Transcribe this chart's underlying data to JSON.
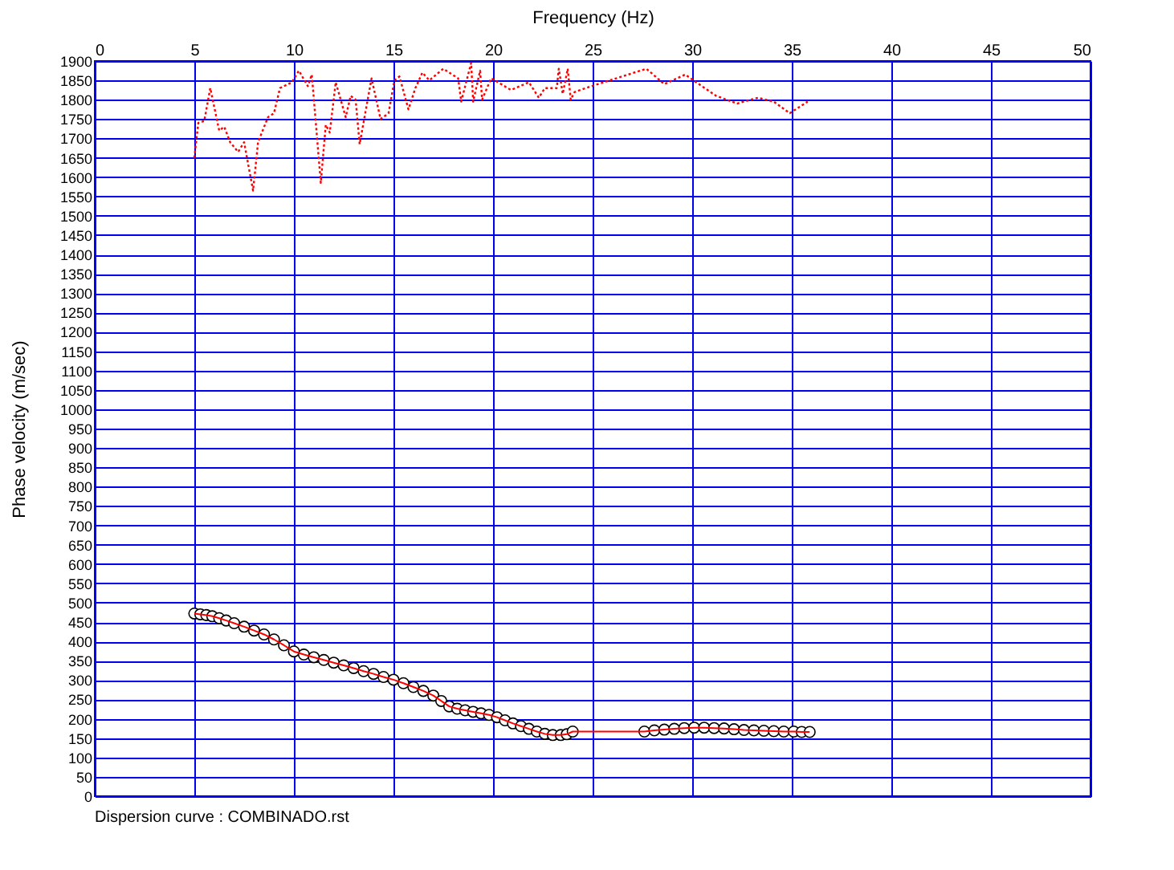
{
  "chart_data": {
    "type": "line",
    "xlabel": "Frequency (Hz)",
    "ylabel": "Phase velocity (m/sec)",
    "xlim": [
      0,
      50
    ],
    "xticks": [
      0,
      5,
      10,
      15,
      20,
      25,
      30,
      35,
      40,
      45,
      50
    ],
    "ylim": [
      0,
      1900
    ],
    "yticks": [
      0,
      50,
      100,
      150,
      200,
      250,
      300,
      350,
      400,
      450,
      500,
      550,
      600,
      650,
      700,
      750,
      800,
      850,
      900,
      950,
      1000,
      1050,
      1100,
      1150,
      1200,
      1250,
      1300,
      1350,
      1400,
      1450,
      1500,
      1550,
      1600,
      1650,
      1700,
      1750,
      1800,
      1850,
      1900
    ],
    "grid": true,
    "annotations": [
      "Dispersion curve : COMBINADO.rst"
    ],
    "series": [
      {
        "color": "#ff0000",
        "line_style": "dotted",
        "marker": "none",
        "x": [
          5.0,
          5.2,
          5.5,
          5.8,
          6.25,
          6.5,
          6.8,
          7.2,
          7.5,
          7.95,
          8.2,
          8.7,
          9.0,
          9.3,
          9.9,
          10.25,
          10.7,
          10.9,
          11.35,
          11.6,
          11.8,
          12.1,
          12.6,
          12.85,
          13.1,
          13.3,
          13.9,
          14.35,
          14.75,
          15.05,
          15.3,
          15.75,
          16.1,
          16.45,
          16.8,
          17.5,
          18.25,
          18.4,
          18.9,
          19.0,
          19.35,
          19.45,
          19.9,
          20.25,
          20.9,
          21.8,
          22.3,
          22.6,
          23.2,
          23.3,
          23.5,
          23.75,
          23.9,
          24.1,
          24.95,
          27.7,
          28.6,
          29.65,
          30.2,
          31.2,
          32.25,
          33.3,
          34.1,
          34.9,
          35.8
        ],
        "values": [
          1650,
          1740,
          1745,
          1830,
          1720,
          1730,
          1690,
          1665,
          1690,
          1565,
          1690,
          1755,
          1765,
          1830,
          1845,
          1875,
          1835,
          1865,
          1585,
          1735,
          1715,
          1845,
          1755,
          1810,
          1800,
          1685,
          1855,
          1750,
          1765,
          1850,
          1860,
          1775,
          1830,
          1870,
          1850,
          1880,
          1855,
          1795,
          1895,
          1795,
          1875,
          1800,
          1855,
          1845,
          1825,
          1845,
          1805,
          1830,
          1830,
          1880,
          1815,
          1880,
          1800,
          1820,
          1835,
          1880,
          1840,
          1865,
          1845,
          1810,
          1790,
          1805,
          1795,
          1765,
          1795
        ]
      },
      {
        "color": "#ff0000",
        "line_style": "solid",
        "marker": "circle",
        "x": [
          5.0,
          5.3,
          5.6,
          5.9,
          6.25,
          6.6,
          7.0,
          7.5,
          8.0,
          8.5,
          9.0,
          9.5,
          10.0,
          10.5,
          11.0,
          11.5,
          12.0,
          12.5,
          13.0,
          13.5,
          14.0,
          14.5,
          15.0,
          15.5,
          16.0,
          16.5,
          17.0,
          17.4,
          17.8,
          18.2,
          18.6,
          19.0,
          19.4,
          19.8,
          20.2,
          20.6,
          21.0,
          21.4,
          21.8,
          22.2,
          22.6,
          23.0,
          23.4,
          23.7,
          24.0,
          27.6,
          28.1,
          28.6,
          29.1,
          29.6,
          30.1,
          30.6,
          31.1,
          31.6,
          32.1,
          32.6,
          33.1,
          33.6,
          34.1,
          34.6,
          35.1,
          35.5,
          35.9
        ],
        "values": [
          472,
          470,
          468,
          465,
          460,
          454,
          447,
          438,
          428,
          418,
          405,
          390,
          374,
          366,
          359,
          352,
          345,
          338,
          331,
          323,
          316,
          308,
          301,
          292,
          282,
          272,
          260,
          246,
          232,
          226,
          222,
          218,
          214,
          210,
          204,
          196,
          188,
          181,
          174,
          167,
          161,
          158,
          158,
          160,
          167,
          167,
          170,
          172,
          174,
          176,
          177,
          177,
          176,
          175,
          173,
          171,
          170,
          169,
          168,
          167,
          167,
          166,
          166
        ]
      }
    ]
  }
}
